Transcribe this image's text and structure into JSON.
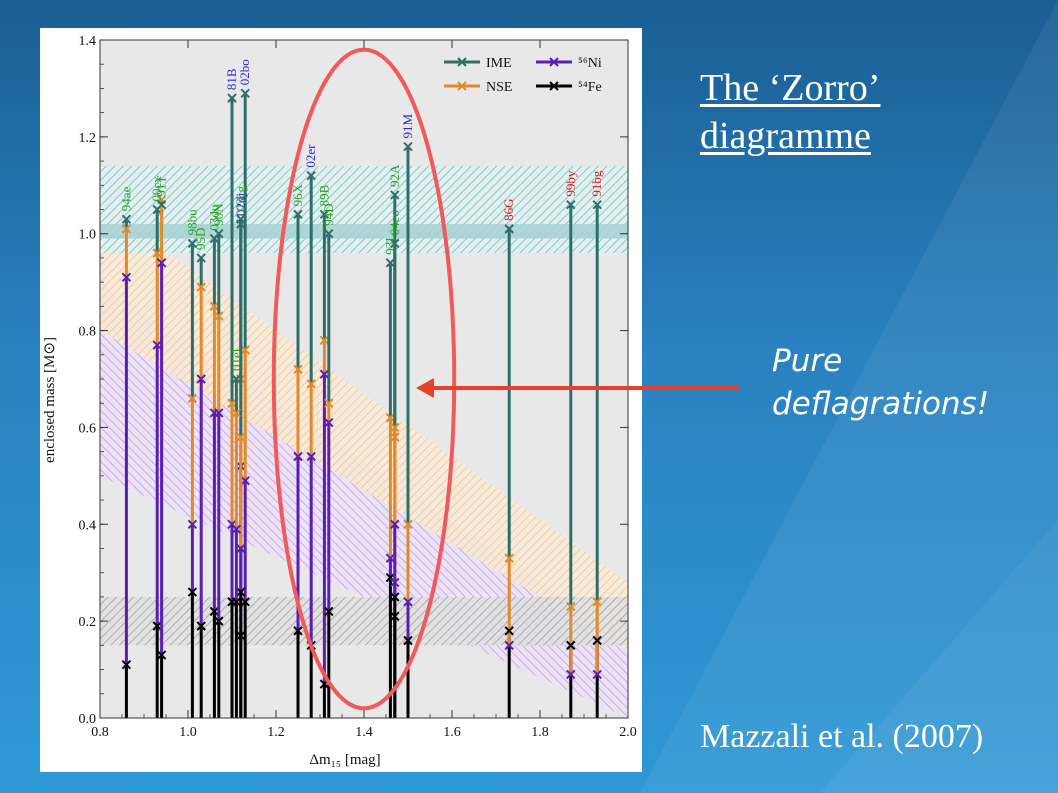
{
  "slide": {
    "title_line1": "The ‘Zorro’",
    "title_line2": "diagramme",
    "annotation_line1": "Pure",
    "annotation_line2": "deflagrations!",
    "citation": "Mazzali et al. (2007)",
    "colors": {
      "arrow": "#e8402a",
      "ellipse": "#f05a5a"
    }
  },
  "chart_data": {
    "type": "line",
    "xlabel": "Δm₁₅ [mag]",
    "ylabel": "enclosed mass [M⊙]",
    "xlim": [
      0.8,
      2.0
    ],
    "ylim": [
      0.0,
      1.4
    ],
    "xticks": [
      0.8,
      1.0,
      1.2,
      1.4,
      1.6,
      1.8,
      2.0
    ],
    "yticks": [
      0.0,
      0.2,
      0.4,
      0.6,
      0.8,
      1.0,
      1.2,
      1.4
    ],
    "legend": [
      {
        "name": "IME",
        "color": "#2f6f6a"
      },
      {
        "name": "NSE",
        "color": "#e08a2a"
      },
      {
        "name": "⁵⁶Ni",
        "color": "#5a1fb0"
      },
      {
        "name": "⁵⁴Fe",
        "color": "#000000"
      }
    ],
    "legend_position": "top-right",
    "colors": {
      "IME": "#2f6f6a",
      "NSE": "#e08a2a",
      "Ni": "#5a1fb0",
      "Fe": "#000000",
      "label_green": "#2aa02a",
      "label_blue": "#2a2acc",
      "label_red": "#cc2020",
      "ime_band": "#7fc4c4",
      "nse_band": "#f2c89a",
      "ni_band": "#c9a6ea",
      "fe_band": "#9a9a9a"
    },
    "bands": {
      "ime": [
        0.96,
        1.14
      ],
      "fe": [
        0.15,
        0.25
      ],
      "nse_diagonal": {
        "x": [
          0.8,
          2.0
        ],
        "upper": [
          1.06,
          0.28
        ],
        "lower": [
          0.8,
          0.14
        ]
      },
      "ni_diagonal": {
        "x": [
          0.8,
          2.0
        ],
        "upper": [
          0.9,
          0.16
        ],
        "lower": [
          0.5,
          0.0
        ]
      }
    },
    "series": [
      {
        "name": "94ae",
        "dm15": 0.86,
        "Fe": 0.11,
        "Ni": 0.91,
        "NSE": 1.01,
        "IME": 1.03,
        "label_color": "green"
      },
      {
        "name": "00cx",
        "dm15": 0.93,
        "Fe": 0.19,
        "Ni": 0.77,
        "NSE": 0.96,
        "IME": 1.05,
        "label_color": "green"
      },
      {
        "name": "91T",
        "dm15": 0.94,
        "Fe": 0.13,
        "Ni": 0.94,
        "NSE": 1.07,
        "IME": 1.06,
        "label_color": "green"
      },
      {
        "name": "98bu",
        "dm15": 1.01,
        "Fe": 0.26,
        "Ni": 0.4,
        "NSE": 0.66,
        "IME": 0.98,
        "label_color": "green"
      },
      {
        "name": "95D",
        "dm15": 1.03,
        "Fe": 0.19,
        "Ni": 0.7,
        "NSE": 0.89,
        "IME": 0.95,
        "label_color": "green"
      },
      {
        "name": "03du",
        "dm15": 1.06,
        "Fe": 0.22,
        "Ni": 0.63,
        "NSE": 0.85,
        "IME": 0.99,
        "label_color": "green"
      },
      {
        "name": "90N",
        "dm15": 1.07,
        "Fe": 0.2,
        "Ni": 0.63,
        "NSE": 0.83,
        "IME": 1.0,
        "label_color": "green"
      },
      {
        "name": "81B",
        "dm15": 1.1,
        "Fe": 0.24,
        "Ni": 0.4,
        "NSE": 0.65,
        "IME": 1.28,
        "label_color": "blue"
      },
      {
        "name": "02dj",
        "dm15": 1.12,
        "Fe": 0.17,
        "Ni": 0.52,
        "NSE": 0.7,
        "IME": 1.02,
        "label_color": "blue"
      },
      {
        "name": "02bo",
        "dm15": 1.13,
        "Fe": 0.24,
        "Ni": 0.49,
        "NSE": 0.76,
        "IME": 1.29,
        "label_color": "blue"
      },
      {
        "name": "03cg",
        "dm15": 1.12,
        "Fe": 0.26,
        "Ni": 0.35,
        "NSE": 0.58,
        "IME": 1.03,
        "label_color": "green"
      },
      {
        "name": "01el",
        "dm15": 1.11,
        "Fe": 0.24,
        "Ni": 0.39,
        "NSE": 0.63,
        "IME": 0.7,
        "label_color": "green"
      },
      {
        "name": "96X",
        "dm15": 1.25,
        "Fe": 0.18,
        "Ni": 0.54,
        "NSE": 0.72,
        "IME": 1.04,
        "label_color": "green"
      },
      {
        "name": "02er",
        "dm15": 1.28,
        "Fe": 0.15,
        "Ni": 0.54,
        "NSE": 0.69,
        "IME": 1.12,
        "label_color": "blue"
      },
      {
        "name": "89B",
        "dm15": 1.31,
        "Fe": 0.07,
        "Ni": 0.71,
        "NSE": 0.78,
        "IME": 1.04,
        "label_color": "green"
      },
      {
        "name": "94D",
        "dm15": 1.32,
        "Fe": 0.22,
        "Ni": 0.61,
        "NSE": 0.65,
        "IME": 1.0,
        "label_color": "green"
      },
      {
        "name": "93L",
        "dm15": 1.46,
        "Fe": 0.29,
        "Ni": 0.33,
        "NSE": 0.62,
        "IME": 0.94,
        "label_color": "green"
      },
      {
        "name": "04eo",
        "dm15": 1.47,
        "Fe": 0.21,
        "Ni": 0.28,
        "NSE": 0.58,
        "IME": 0.98,
        "label_color": "green"
      },
      {
        "name": "92A",
        "dm15": 1.47,
        "Fe": 0.25,
        "Ni": 0.4,
        "NSE": 0.6,
        "IME": 1.08,
        "label_color": "green"
      },
      {
        "name": "91M",
        "dm15": 1.5,
        "Fe": 0.16,
        "Ni": 0.24,
        "NSE": 0.4,
        "IME": 1.18,
        "label_color": "blue"
      },
      {
        "name": "86G",
        "dm15": 1.73,
        "Fe": 0.18,
        "Ni": 0.15,
        "NSE": 0.33,
        "IME": 1.01,
        "label_color": "red"
      },
      {
        "name": "99by",
        "dm15": 1.87,
        "Fe": 0.15,
        "Ni": 0.09,
        "NSE": 0.23,
        "IME": 1.06,
        "label_color": "red"
      },
      {
        "name": "91bg",
        "dm15": 1.93,
        "Fe": 0.16,
        "Ni": 0.09,
        "NSE": 0.24,
        "IME": 1.06,
        "label_color": "red"
      }
    ],
    "highlight_ellipse": {
      "x_center": 1.4,
      "y_center": 0.7,
      "x_radius": 0.205,
      "y_radius": 0.68
    }
  }
}
